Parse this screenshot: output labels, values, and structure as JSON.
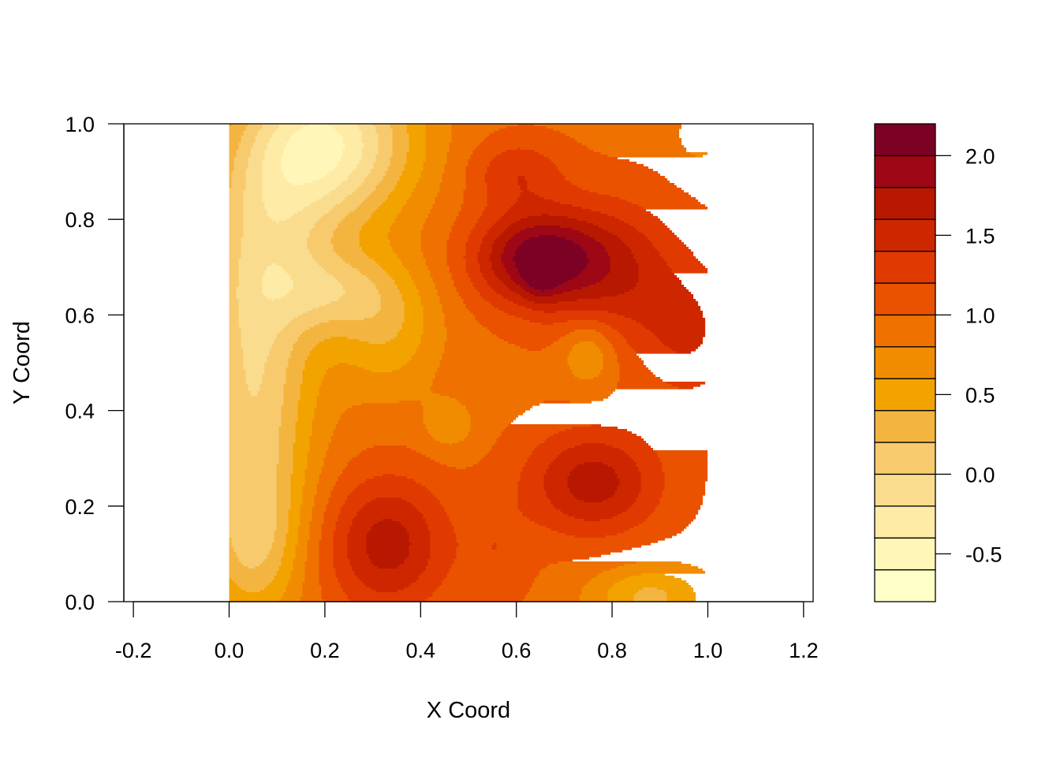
{
  "chart_data": {
    "type": "heatmap",
    "subtype": "filled-contour",
    "title": "",
    "xlabel": "X Coord",
    "ylabel": "Y Coord",
    "xlim": [
      -0.22,
      1.22
    ],
    "ylim": [
      0.0,
      1.0
    ],
    "x_ticks": [
      -0.2,
      0.0,
      0.2,
      0.4,
      0.6,
      0.8,
      1.0,
      1.2
    ],
    "x_tick_labels": [
      "-0.2",
      "0.0",
      "0.2",
      "0.4",
      "0.6",
      "0.8",
      "1.0",
      "1.2"
    ],
    "y_ticks": [
      0.0,
      0.2,
      0.4,
      0.6,
      0.8,
      1.0
    ],
    "y_tick_labels": [
      "0.0",
      "0.2",
      "0.4",
      "0.6",
      "0.8",
      "1.0"
    ],
    "data_extent": {
      "x": [
        0.0,
        1.0
      ],
      "y": [
        0.0,
        1.0
      ]
    },
    "grid": false,
    "legend": {
      "position": "right",
      "range": [
        -0.8,
        2.2
      ],
      "ticks": [
        -0.5,
        0.0,
        0.5,
        1.0,
        1.5,
        2.0
      ],
      "tick_labels": [
        "-0.5",
        "0.0",
        "0.5",
        "1.0",
        "1.5",
        "2.0"
      ],
      "levels": [
        -0.8,
        -0.6,
        -0.4,
        -0.2,
        0.0,
        0.2,
        0.4,
        0.6,
        0.8,
        1.0,
        1.2,
        1.4,
        1.6,
        1.8,
        2.0,
        2.2
      ],
      "colors": [
        "#FFFFC8",
        "#FFF6B8",
        "#FDEBA6",
        "#FADC8E",
        "#F7CA6E",
        "#F4B540",
        "#F3A300",
        "#F18C00",
        "#EF7100",
        "#EA5200",
        "#E13A00",
        "#CE2700",
        "#B81800",
        "#9E0715",
        "#7D0025"
      ]
    },
    "field": {
      "base": 0.95,
      "features": [
        {
          "x": 0.2,
          "y": 0.96,
          "amp": -1.35,
          "sx": 0.13,
          "sy": 0.12
        },
        {
          "x": 0.08,
          "y": 0.76,
          "amp": -0.55,
          "sx": 0.1,
          "sy": 0.14
        },
        {
          "x": 0.05,
          "y": 0.45,
          "amp": -0.9,
          "sx": 0.09,
          "sy": 0.22
        },
        {
          "x": 0.05,
          "y": 0.12,
          "amp": -0.6,
          "sx": 0.07,
          "sy": 0.12
        },
        {
          "x": 0.22,
          "y": 0.65,
          "amp": -0.55,
          "sx": 0.09,
          "sy": 0.06
        },
        {
          "x": 0.33,
          "y": 0.57,
          "amp": -0.5,
          "sx": 0.08,
          "sy": 0.1
        },
        {
          "x": 0.46,
          "y": 0.37,
          "amp": -0.3,
          "sx": 0.04,
          "sy": 0.04
        },
        {
          "x": 0.6,
          "y": 0.9,
          "amp": 0.4,
          "sx": 0.07,
          "sy": 0.05
        },
        {
          "x": 0.64,
          "y": 0.72,
          "amp": 1.1,
          "sx": 0.09,
          "sy": 0.07
        },
        {
          "x": 0.65,
          "y": 0.67,
          "amp": 0.25,
          "sx": 0.025,
          "sy": 0.03
        },
        {
          "x": 0.8,
          "y": 0.7,
          "amp": 0.6,
          "sx": 0.1,
          "sy": 0.1
        },
        {
          "x": 0.96,
          "y": 0.56,
          "amp": 0.45,
          "sx": 0.08,
          "sy": 0.1
        },
        {
          "x": 0.75,
          "y": 0.52,
          "amp": -0.4,
          "sx": 0.04,
          "sy": 0.05
        },
        {
          "x": 0.76,
          "y": 0.25,
          "amp": 0.75,
          "sx": 0.1,
          "sy": 0.08
        },
        {
          "x": 0.33,
          "y": 0.12,
          "amp": 0.75,
          "sx": 0.09,
          "sy": 0.1
        },
        {
          "x": 0.88,
          "y": 0.01,
          "amp": -0.6,
          "sx": 0.09,
          "sy": 0.05
        },
        {
          "x": 0.56,
          "y": 0.1,
          "amp": 0.2,
          "sx": 0.05,
          "sy": 0.08
        },
        {
          "x": 0.98,
          "y": 0.98,
          "amp": -0.25,
          "sx": 0.04,
          "sy": 0.05
        }
      ]
    }
  }
}
